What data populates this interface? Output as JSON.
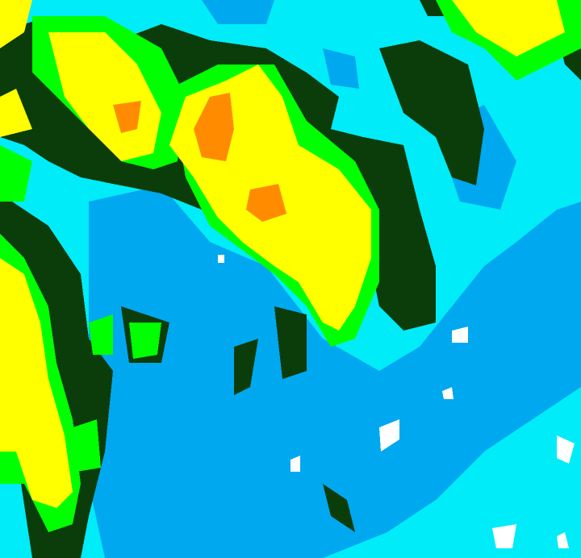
{
  "map": {
    "type": "precipitation-intensity-raster",
    "palette": {
      "light": "#00ecf8",
      "moderate-light": "#00a8f0",
      "low": "#0b3d0b",
      "medium-low": "#22e622",
      "medium": "#00ff00",
      "high": "#ffff00",
      "very-high": "#ff8c00",
      "none": "#ffffff"
    }
  }
}
